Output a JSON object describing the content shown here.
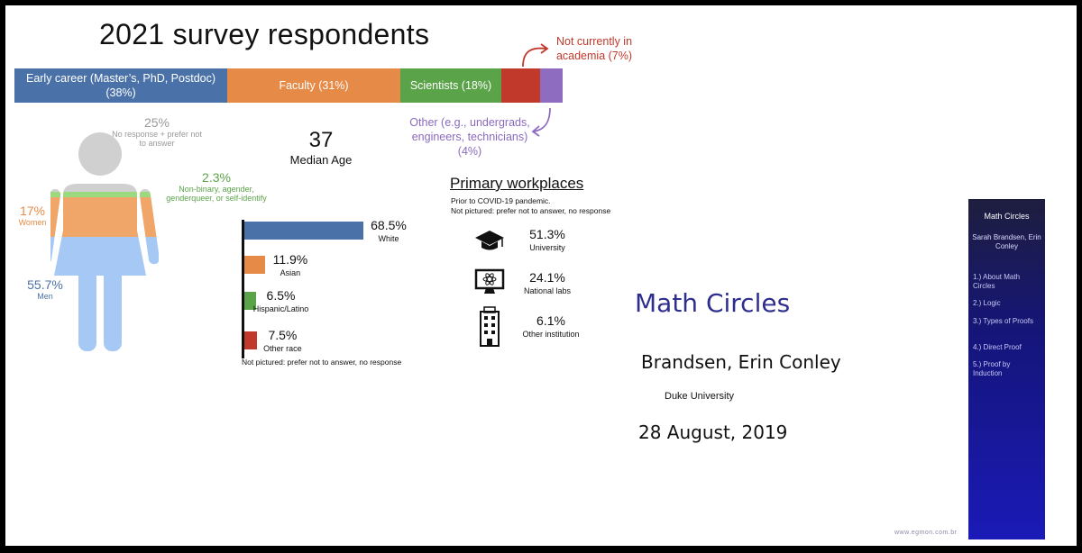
{
  "survey": {
    "title": "2021 survey respondents",
    "career_bar": [
      {
        "label": "Early career (Master’s, PhD, Postdoc) (38%)",
        "percent": 38,
        "color": "#4a72a8"
      },
      {
        "label": "Faculty (31%)",
        "percent": 31,
        "color": "#e68a47"
      },
      {
        "label": "Scientists (18%)",
        "percent": 18,
        "color": "#5aa349"
      },
      {
        "label": "",
        "percent": 7,
        "color": "#c0392b"
      },
      {
        "label": "",
        "percent": 4,
        "color": "#8e6cc0"
      }
    ],
    "not_in_academia": "Not currently in academia (7%)",
    "other_roles": "Other (e.g., undergrads, engineers, technicians) (4%)",
    "gender": {
      "no_response": {
        "pct": "25%",
        "label": "No response + prefer not to answer"
      },
      "nonbinary": {
        "pct": "2.3%",
        "label": "Non-binary, agender, genderqueer, or self-identify"
      },
      "women": {
        "pct": "17%",
        "label": "Women"
      },
      "men": {
        "pct": "55.7%",
        "label": "Men"
      }
    },
    "median": {
      "value": "37",
      "label": "Median Age"
    },
    "race": [
      {
        "pct": "68.5%",
        "label": "White",
        "value": 68.5,
        "color": "#4a72a8"
      },
      {
        "pct": "11.9%",
        "label": "Asian",
        "value": 11.9,
        "color": "#e68a47"
      },
      {
        "pct": "6.5%",
        "label": "Hispanic/Latino",
        "value": 6.5,
        "color": "#5aa349"
      },
      {
        "pct": "7.5%",
        "label": "Other race",
        "value": 7.5,
        "color": "#c0392b"
      }
    ],
    "race_note": "Not pictured: prefer not to answer, no response",
    "workplaces": {
      "title": "Primary workplaces",
      "note1": "Prior to COVID-19 pandemic.",
      "note2": "Not pictured: prefer not to answer, no response",
      "items": [
        {
          "pct": "51.3%",
          "label": "University",
          "icon": "graduation-cap-icon"
        },
        {
          "pct": "24.1%",
          "label": "National labs",
          "icon": "atom-monitor-icon"
        },
        {
          "pct": "6.1%",
          "label": "Other institution",
          "icon": "office-building-icon"
        }
      ]
    }
  },
  "slide": {
    "title": "Math Circles",
    "authors": "Brandsen, Erin Conley",
    "institution": "Duke University",
    "date": "28 August, 2019",
    "sidebar": {
      "heading": "Math Circles",
      "authors": "Sarah Brandsen, Erin Conley",
      "items": [
        "1.) About Math Circles",
        "2.) Logic",
        "3.) Types of Proofs",
        "4.) Direct Proof",
        "5.) Proof by Induction"
      ]
    },
    "watermark": "www.egmon.com.br"
  }
}
